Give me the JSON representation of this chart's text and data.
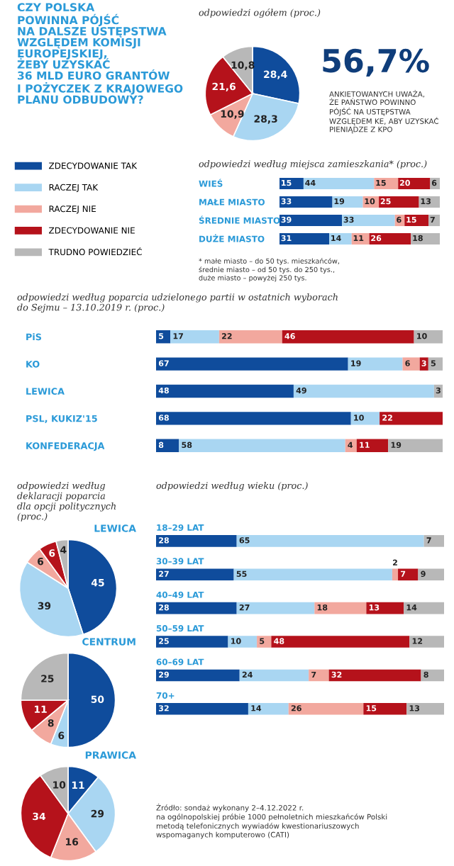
{
  "chart_data": [
    {
      "type": "pie",
      "title": "CZY POLSKA\nPOWINNA PÓJŚĆ\nNA DALSZE USTĘPSTWA\nWZGLĘDEM KOMISJI\nEUROPEJSKIEJ,\nŻEBY UZYSKAĆ\n36 MLD EURO GRANTÓW\nI POŻYCZEK Z KRAJOWEGO\nPLANU ODBUDOWY?",
      "subtitle": "odpowiedzi ogółem (proc.)",
      "categories": [
        "ZDECYDOWANIE TAK",
        "RACZEJ TAK",
        "RACZEJ NIE",
        "ZDECYDOWANIE NIE",
        "TRUDNO POWIEDZIEĆ"
      ],
      "values": [
        28.4,
        28.3,
        10.9,
        21.6,
        10.8
      ],
      "value_labels": [
        "28,4",
        "28,3",
        "10,9",
        "21,6",
        "10,8"
      ],
      "colors": [
        "#0f4c9c",
        "#a9d6f2",
        "#f2a89e",
        "#b5121b",
        "#b8b8b8"
      ],
      "data_labels": true,
      "legend": "left",
      "annotations": [
        "56,7%",
        "ANKIETOWANYCH UWAŻA,\nŻE PAŃSTWO POWINNO\nPÓJŚĆ NA USTĘPSTWA\nWZGLĘDEM KE, ABY UZYSKAĆ\nPIENIĄDZE Z KPO"
      ]
    },
    {
      "type": "bar",
      "subtitle": "odpowiedzi według miejsca zamieszkania* (proc.)",
      "orientation": "horizontal",
      "stacked": true,
      "data_labels": true,
      "tick_labels": false,
      "xlim": [
        0,
        100
      ],
      "categories": [
        "WIEŚ",
        "MAŁE MIASTO",
        "ŚREDNIE MIASTO",
        "DUŻE MIASTO"
      ],
      "series": [
        {
          "color": "#0f4c9c",
          "values": [
            15,
            33,
            39,
            31
          ]
        },
        {
          "color": "#a9d6f2",
          "values": [
            44,
            19,
            33,
            14
          ]
        },
        {
          "color": "#f2a89e",
          "values": [
            15,
            10,
            6,
            11
          ]
        },
        {
          "color": "#b5121b",
          "values": [
            20,
            25,
            15,
            26
          ]
        },
        {
          "color": "#b8b8b8",
          "values": [
            6,
            13,
            7,
            18
          ]
        }
      ],
      "annotations": [
        "* małe miasto – do 50 tys. mieszkańców,\nśrednie miasto – od 50 tys. do 250 tys.,\nduże miasto – powyżej 250 tys."
      ]
    },
    {
      "type": "bar",
      "subtitle": "odpowiedzi według poparcia udzielonego partii w ostatnich wyborach\ndo Sejmu – 13.10.2019 r. (proc.)",
      "orientation": "horizontal",
      "stacked": true,
      "data_labels": true,
      "tick_labels": false,
      "xlim": [
        0,
        100
      ],
      "categories": [
        "PiS",
        "KO",
        "LEWICA",
        "PSL, KUKIZ'15",
        "KONFEDERACJA"
      ],
      "series": [
        {
          "color": "#0f4c9c",
          "values": [
            5,
            67,
            48,
            68,
            8
          ]
        },
        {
          "color": "#a9d6f2",
          "values": [
            17,
            19,
            49,
            10,
            58
          ]
        },
        {
          "color": "#f2a89e",
          "values": [
            22,
            6,
            null,
            null,
            4
          ]
        },
        {
          "color": "#b5121b",
          "values": [
            46,
            3,
            null,
            22,
            11
          ]
        },
        {
          "color": "#b8b8b8",
          "values": [
            10,
            5,
            3,
            null,
            19
          ]
        }
      ]
    },
    {
      "type": "pie",
      "subtitle": "odpowiedzi według\ndeklaracji poparcia\ndla opcji politycznych\n(proc.)",
      "title": "LEWICA",
      "values": [
        45,
        39,
        6,
        6,
        4
      ],
      "colors": [
        "#0f4c9c",
        "#a9d6f2",
        "#f2a89e",
        "#b5121b",
        "#b8b8b8"
      ],
      "data_labels": true
    },
    {
      "type": "pie",
      "title": "CENTRUM",
      "values": [
        50,
        6,
        8,
        11,
        25
      ],
      "colors": [
        "#0f4c9c",
        "#a9d6f2",
        "#f2a89e",
        "#b5121b",
        "#b8b8b8"
      ],
      "data_labels": true
    },
    {
      "type": "pie",
      "title": "PRAWICA",
      "values": [
        11,
        29,
        16,
        34,
        10
      ],
      "colors": [
        "#0f4c9c",
        "#a9d6f2",
        "#f2a89e",
        "#b5121b",
        "#b8b8b8"
      ],
      "data_labels": true
    },
    {
      "type": "bar",
      "subtitle": "odpowiedzi według wieku (proc.)",
      "orientation": "horizontal",
      "stacked": true,
      "data_labels": true,
      "tick_labels": false,
      "xlim": [
        0,
        100
      ],
      "categories": [
        "18–29 LAT",
        "30–39 LAT",
        "40–49 LAT",
        "50–59 LAT",
        "60–69 LAT",
        "70+"
      ],
      "series": [
        {
          "color": "#0f4c9c",
          "values": [
            28,
            27,
            28,
            25,
            29,
            32
          ]
        },
        {
          "color": "#a9d6f2",
          "values": [
            65,
            55,
            27,
            10,
            24,
            14
          ]
        },
        {
          "color": "#f2a89e",
          "values": [
            null,
            2,
            18,
            5,
            7,
            26
          ]
        },
        {
          "color": "#b5121b",
          "values": [
            null,
            7,
            13,
            48,
            32,
            15
          ]
        },
        {
          "color": "#b8b8b8",
          "values": [
            7,
            9,
            14,
            12,
            8,
            13
          ]
        }
      ],
      "annotations": [
        "Źródło: sondaż wykonany 2–4.12.2022 r.\nna ogólnopolskiej próbie 1000 pełnoletnich mieszkańców Polski\nmetodą telefonicznych wywiadów kwestionariuszowych\nwspomaganych komputerowo (CATI)"
      ]
    }
  ]
}
